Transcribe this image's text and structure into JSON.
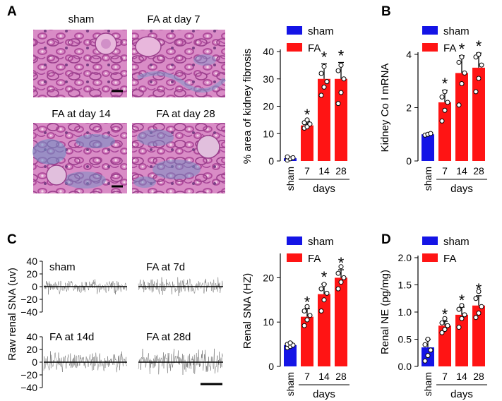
{
  "colors": {
    "sham": "#1414e6",
    "fa": "#ff1414",
    "stain_pink": "#c96fb4",
    "stain_blue": "#6f8fc4",
    "trace": "#333333"
  },
  "panel_labels": [
    "A",
    "B",
    "C",
    "D"
  ],
  "histology": {
    "images": [
      {
        "label": "sham"
      },
      {
        "label": "FA at day 7"
      },
      {
        "label": "FA at day 14"
      },
      {
        "label": "FA at day 28"
      }
    ]
  },
  "traces": {
    "ylabel": "Raw renal SNA (uv)",
    "ticks": [
      "40",
      "20",
      "0",
      "−20",
      "−40"
    ],
    "panels": [
      {
        "label": "sham"
      },
      {
        "label": "FA at 7d"
      },
      {
        "label": "FA at 14d"
      },
      {
        "label": "FA at 28d"
      }
    ]
  },
  "chart_data": [
    {
      "id": "fibrosis",
      "type": "bar",
      "ylabel": "% area of kidney fibrosis",
      "ylim": [
        0,
        40
      ],
      "yticks": [
        0,
        10,
        20,
        30,
        40
      ],
      "categories": [
        "sham",
        "7",
        "14",
        "28"
      ],
      "group_label": "days",
      "legend": [
        "sham",
        "FA"
      ],
      "values": [
        1,
        13,
        30,
        30
      ],
      "errors": [
        0.5,
        1.5,
        5.5,
        6
      ],
      "significant": [
        false,
        true,
        true,
        true
      ],
      "points": [
        [
          0.3,
          0.8,
          1.2,
          1.5
        ],
        [
          12,
          12.5,
          13.5,
          14,
          15
        ],
        [
          24,
          27,
          29,
          32,
          34.5
        ],
        [
          21,
          25,
          30,
          33,
          35
        ]
      ]
    },
    {
      "id": "col1",
      "type": "bar",
      "ylabel": "Kidney Co I mRNA",
      "ylim": [
        0,
        4
      ],
      "yticks": [
        0,
        2,
        4
      ],
      "categories": [
        "sham",
        "7",
        "14",
        "28"
      ],
      "group_label": "days",
      "legend": [
        "sham",
        "FA"
      ],
      "values": [
        1,
        2.2,
        3.3,
        3.5
      ],
      "errors": [
        0.03,
        0.45,
        0.65,
        0.55
      ],
      "significant": [
        false,
        true,
        true,
        true
      ],
      "points": [
        [
          0.97,
          1.0,
          1.03
        ],
        [
          1.5,
          1.9,
          2.2,
          2.4,
          2.6
        ],
        [
          2.1,
          2.9,
          3.3,
          3.7,
          3.9
        ],
        [
          2.6,
          3.1,
          3.6,
          3.9,
          4.0
        ]
      ]
    },
    {
      "id": "rsna",
      "type": "bar",
      "ylabel": "Renal SNA (HZ)",
      "ylim": [
        0,
        25
      ],
      "yticks": [
        0,
        10,
        20
      ],
      "categories": [
        "sham",
        "7",
        "14",
        "28"
      ],
      "group_label": "days",
      "legend": [
        "sham",
        "FA"
      ],
      "values": [
        4.8,
        11.2,
        16.3,
        20
      ],
      "errors": [
        0.6,
        1.8,
        2.3,
        1.8
      ],
      "significant": [
        false,
        true,
        true,
        true
      ],
      "points": [
        [
          4.2,
          4.5,
          4.8,
          5.0,
          5.3
        ],
        [
          9.2,
          10.5,
          11.5,
          12.5,
          13.5
        ],
        [
          12.5,
          15,
          16.5,
          17.5,
          18.5
        ],
        [
          17.5,
          19,
          20,
          21,
          22.5
        ]
      ]
    },
    {
      "id": "ne",
      "type": "bar",
      "ylabel": "Renal NE (pg/mg)",
      "ylim": [
        0,
        2.0
      ],
      "yticks": [
        "0.0",
        "0.5",
        "1.0",
        "1.5",
        "2.0"
      ],
      "categories": [
        "sham",
        "7",
        "14",
        "28"
      ],
      "group_label": "days",
      "legend": [
        "sham",
        "FA"
      ],
      "values": [
        0.35,
        0.75,
        0.95,
        1.12
      ],
      "errors": [
        0.15,
        0.08,
        0.14,
        0.18
      ],
      "significant": [
        false,
        true,
        true,
        true
      ],
      "points": [
        [
          0.1,
          0.2,
          0.3,
          0.4,
          0.5
        ],
        [
          0.62,
          0.68,
          0.75,
          0.8,
          0.88
        ],
        [
          0.72,
          0.88,
          0.95,
          1.05,
          1.12
        ],
        [
          0.9,
          0.98,
          1.1,
          1.25,
          1.38
        ]
      ]
    }
  ]
}
